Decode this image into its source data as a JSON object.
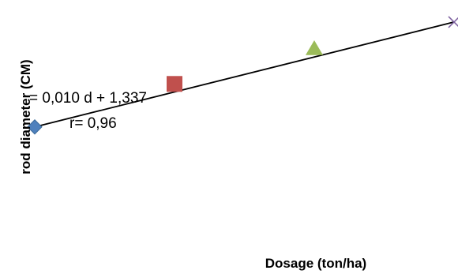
{
  "chart_data": {
    "type": "scatter",
    "title": "",
    "xlabel": "Dosage (ton/ha)",
    "ylabel": "rod diameter (CM)",
    "xlim": [
      0,
      30
    ],
    "ylim": [
      1.0,
      1.7
    ],
    "grid": false,
    "legend": "none",
    "series": [
      {
        "values": [
          {
            "x": 0,
            "y": 1.337,
            "marker": "diamond",
            "color": "#4f81bd"
          },
          {
            "x": 10,
            "y": 1.46,
            "marker": "square",
            "color": "#c0504d"
          },
          {
            "x": 20,
            "y": 1.56,
            "marker": "triangle",
            "color": "#9bbb59"
          },
          {
            "x": 30,
            "y": 1.637,
            "marker": "x",
            "color": "#8064a2"
          }
        ]
      }
    ],
    "trendline": {
      "type": "linear",
      "slope": 0.01,
      "intercept": 1.337,
      "color": "#000000"
    },
    "annotations": {
      "equation_prefix": "= 0,010  d + 1,337",
      "correlation": "r= 0,96"
    }
  }
}
